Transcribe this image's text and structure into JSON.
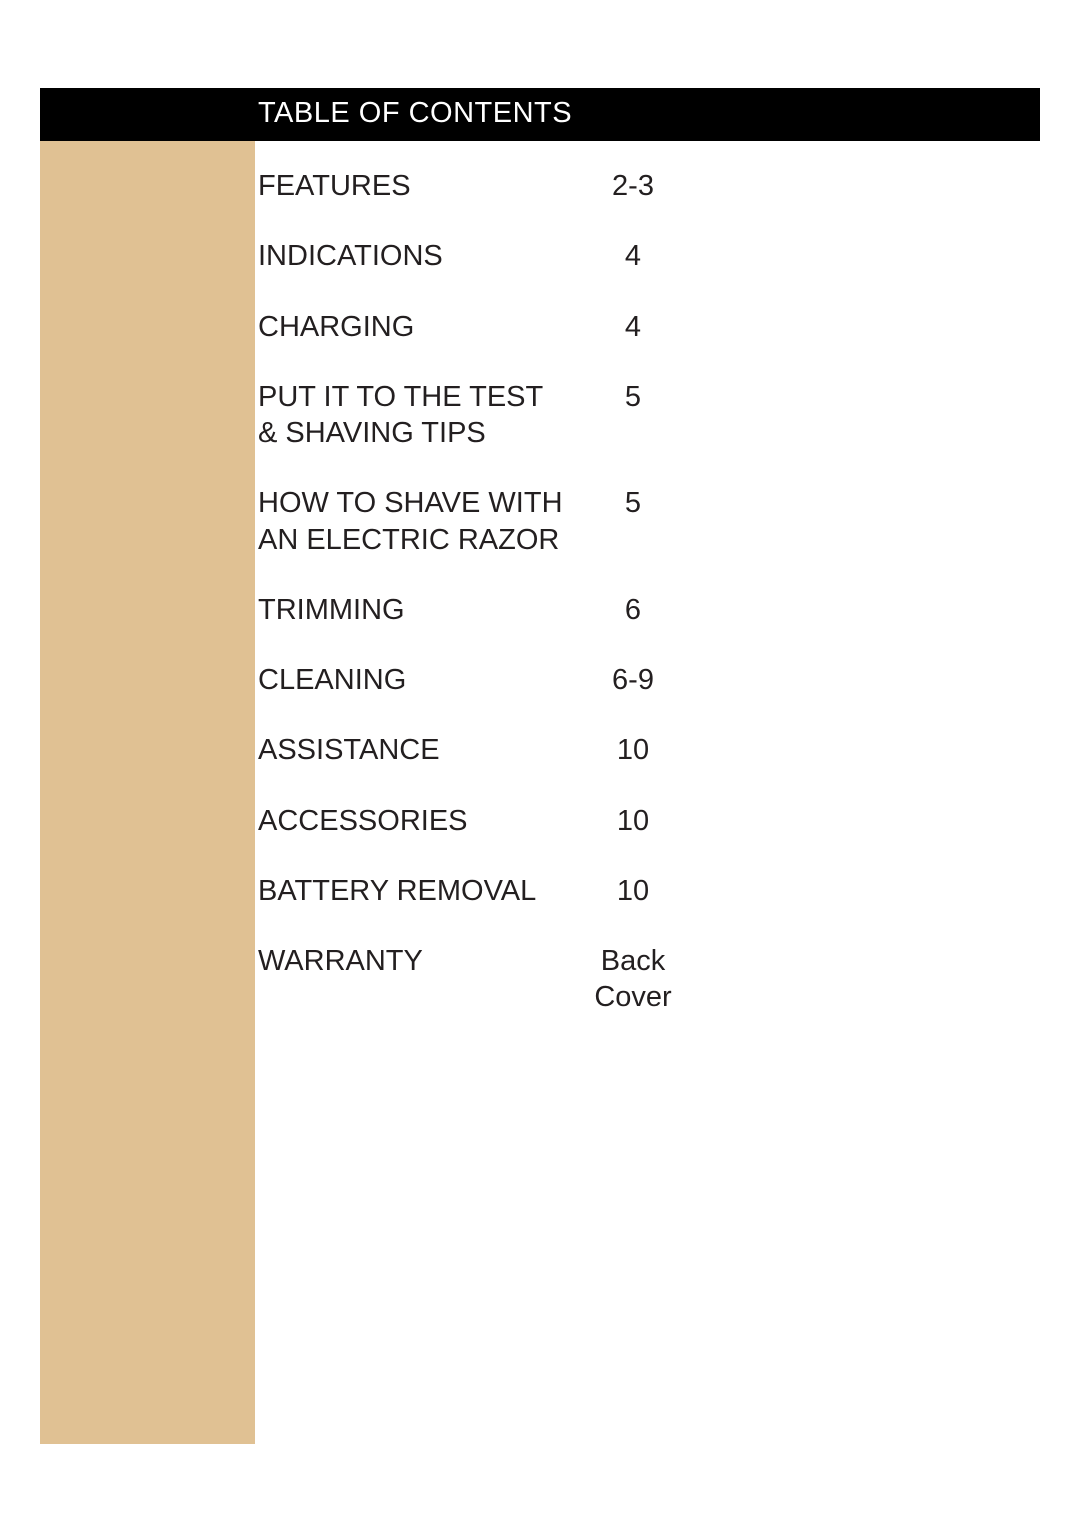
{
  "title": "TABLE OF CONTENTS",
  "toc": [
    {
      "label": "FEATURES",
      "page": "2-3"
    },
    {
      "label": "INDICATIONS",
      "page": "4"
    },
    {
      "label": "CHARGING",
      "page": "4"
    },
    {
      "label": "PUT IT TO THE TEST & SHAVING TIPS",
      "page": "5"
    },
    {
      "label": "HOW TO SHAVE WITH AN ELECTRIC RAZOR",
      "page": "5"
    },
    {
      "label": "TRIMMING",
      "page": "6"
    },
    {
      "label": "CLEANING",
      "page": "6-9"
    },
    {
      "label": "ASSISTANCE",
      "page": "10"
    },
    {
      "label": "ACCESSORIES",
      "page": "10"
    },
    {
      "label": "BATTERY REMOVAL",
      "page": "10"
    },
    {
      "label": "WARRANTY",
      "page": "Back Cover"
    }
  ],
  "colors": {
    "tan": "#e0c193",
    "black": "#000000",
    "white": "#ffffff",
    "text": "#231f20"
  }
}
